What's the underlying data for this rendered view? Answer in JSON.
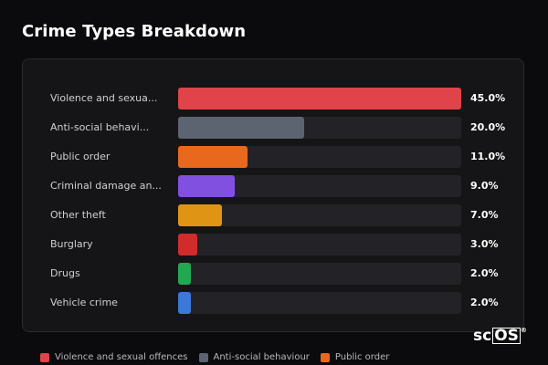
{
  "header": {
    "title": "Crime Types Breakdown"
  },
  "chart_data": {
    "type": "bar",
    "orientation": "horizontal",
    "categories": [
      "Violence and sexual offences",
      "Anti-social behaviour",
      "Public order",
      "Criminal damage and arson",
      "Other theft",
      "Burglary",
      "Drugs",
      "Vehicle crime"
    ],
    "display_labels": [
      "Violence and sexua...",
      "Anti-social behavi...",
      "Public order",
      "Criminal damage an...",
      "Other theft",
      "Burglary",
      "Drugs",
      "Vehicle crime"
    ],
    "values": [
      45.0,
      20.0,
      11.0,
      9.0,
      7.0,
      3.0,
      2.0,
      2.0
    ],
    "value_labels": [
      "45.0%",
      "20.0%",
      "11.0%",
      "9.0%",
      "7.0%",
      "3.0%",
      "2.0%",
      "2.0%"
    ],
    "colors": [
      "#e0434a",
      "#5c6472",
      "#e8681e",
      "#8250e0",
      "#df9416",
      "#d02c2c",
      "#22a852",
      "#3b78d8"
    ],
    "xlim": [
      0,
      45
    ],
    "legend": [
      {
        "label": "Violence and sexual offences",
        "color": "#e0434a"
      },
      {
        "label": "Anti-social behaviour",
        "color": "#5c6472"
      },
      {
        "label": "Public order",
        "color": "#e8681e"
      }
    ],
    "legend_position": "bottom"
  },
  "branding": {
    "logo_text_a": "sc",
    "logo_text_b": "OS",
    "logo_mark": "®"
  }
}
